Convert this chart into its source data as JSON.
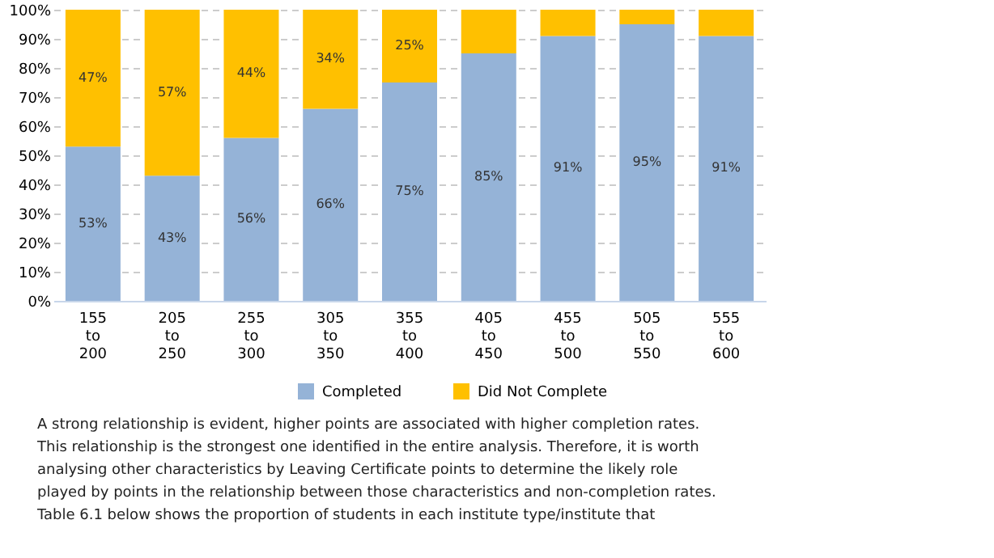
{
  "chart_data": {
    "type": "bar",
    "stacked": true,
    "categories": [
      "155 to 200",
      "205 to 250",
      "255 to 300",
      "305 to 350",
      "355 to 400",
      "405 to 450",
      "455 to 500",
      "505 to 550",
      "555 to 600"
    ],
    "series": [
      {
        "name": "Completed",
        "color": "#95b3d7",
        "values": [
          53,
          43,
          56,
          66,
          75,
          85,
          91,
          95,
          91
        ],
        "value_labels": [
          "53%",
          "43%",
          "56%",
          "66%",
          "75%",
          "85%",
          "91%",
          "95%",
          "91%"
        ]
      },
      {
        "name": "Did Not Complete",
        "color": "#ffc000",
        "values": [
          47,
          57,
          44,
          34,
          25,
          15,
          9,
          5,
          9
        ],
        "value_labels": [
          "47%",
          "57%",
          "44%",
          "34%",
          "25%",
          null,
          null,
          null,
          null
        ]
      }
    ],
    "ylim": [
      0,
      100
    ],
    "yticks": [
      {
        "value": 0,
        "label": "0%"
      },
      {
        "value": 10,
        "label": "10%"
      },
      {
        "value": 20,
        "label": "20%"
      },
      {
        "value": 30,
        "label": "30%"
      },
      {
        "value": 40,
        "label": "40%"
      },
      {
        "value": 50,
        "label": "50%"
      },
      {
        "value": 60,
        "label": "60%"
      },
      {
        "value": 70,
        "label": "70%"
      },
      {
        "value": 80,
        "label": "80%"
      },
      {
        "value": 90,
        "label": "90%"
      },
      {
        "value": 100,
        "label": "100%"
      }
    ],
    "grid": "y",
    "legend": "bottom",
    "annotations": [
      "A strong relationship is evident, higher points are associated with higher completion rates. This relationship is the strongest one identified in the entire analysis. Therefore, it is worth analysing other characteristics by Leaving Certificate points to determine the likely role played by points in the relationship between those characteristics and non-completion rates. Table 6.1 below shows the proportion of students in each institute type/institute that"
    ]
  }
}
